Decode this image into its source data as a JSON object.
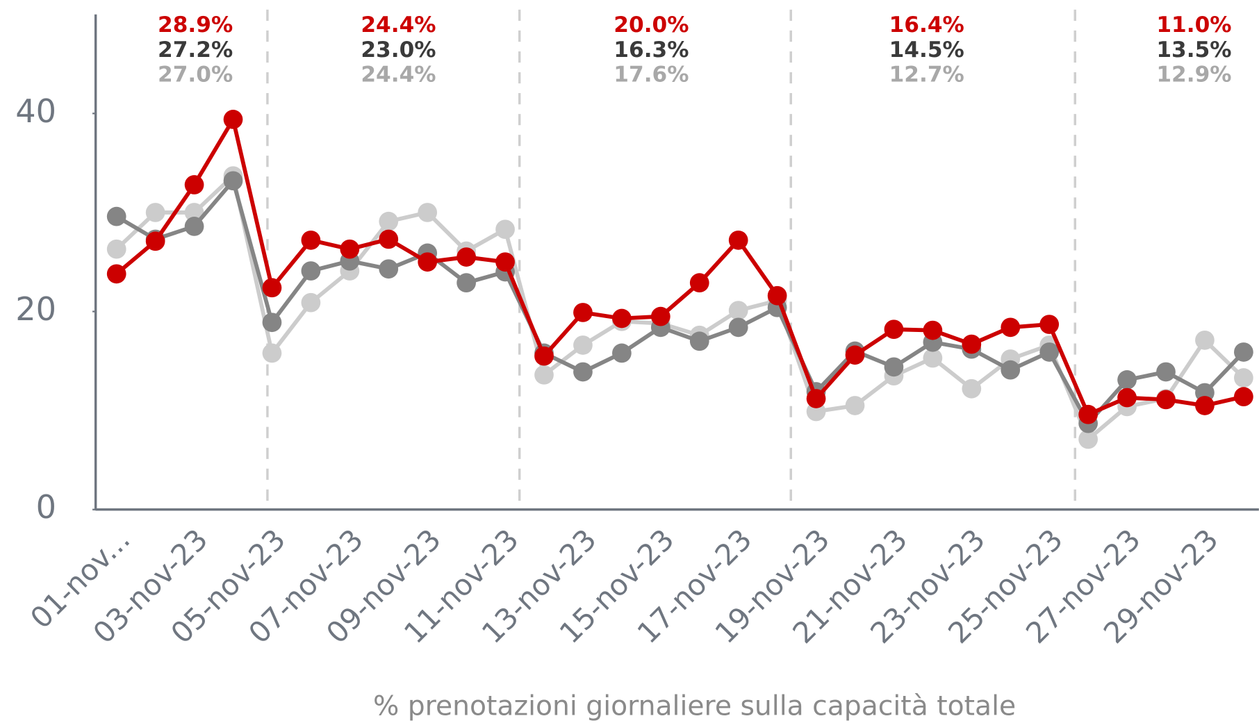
{
  "chart_data": {
    "type": "line",
    "x_label": "% prenotazioni giornaliere sulla capacità totale",
    "categories": [
      "01-nov...",
      null,
      "03-nov-23",
      null,
      "05-nov-23",
      null,
      "07-nov-23",
      null,
      "09-nov-23",
      null,
      "11-nov-23",
      null,
      "13-nov-23",
      null,
      "15-nov-23",
      null,
      "17-nov-23",
      null,
      "19-nov-23",
      null,
      "21-nov-23",
      null,
      "23-nov-23",
      null,
      "25-nov-23",
      null,
      "27-nov-23",
      null,
      "29-nov-23",
      null
    ],
    "series": [
      {
        "color": "#cccccc",
        "values": [
          26.3,
          30.0,
          30.0,
          33.7,
          15.8,
          20.9,
          24.1,
          29.1,
          30.0,
          26.1,
          28.3,
          13.6,
          16.6,
          19.0,
          18.8,
          17.6,
          20.1,
          21.1,
          9.9,
          10.5,
          13.5,
          15.3,
          12.2,
          15.2,
          16.6,
          7.1,
          10.4,
          11.2,
          17.1,
          13.3
        ]
      },
      {
        "color": "#858585",
        "values": [
          29.6,
          27.3,
          28.6,
          33.2,
          18.9,
          24.1,
          25.1,
          24.3,
          25.9,
          22.9,
          24.0,
          15.8,
          13.9,
          15.8,
          18.4,
          17.0,
          18.4,
          20.4,
          11.9,
          16.0,
          14.4,
          16.9,
          16.2,
          14.1,
          15.9,
          8.7,
          13.1,
          13.9,
          11.8,
          15.9
        ]
      },
      {
        "color": "#cc0000",
        "values": [
          23.8,
          27.1,
          32.8,
          39.4,
          22.4,
          27.2,
          26.3,
          27.3,
          25.0,
          25.5,
          25.0,
          15.5,
          19.9,
          19.3,
          19.5,
          22.9,
          27.2,
          21.6,
          11.2,
          15.6,
          18.2,
          18.1,
          16.7,
          18.4,
          18.7,
          9.6,
          11.3,
          11.1,
          10.5,
          11.4
        ]
      }
    ],
    "annotations": [
      [
        "28.9%",
        "27.2%",
        "27.0%"
      ],
      [
        "24.4%",
        "23.0%",
        "24.4%"
      ],
      [
        "20.0%",
        "16.3%",
        "17.6%"
      ],
      [
        "16.4%",
        "14.5%",
        "12.7%"
      ],
      [
        "11.0%",
        "13.5%",
        "12.9%"
      ]
    ],
    "annotation_colors": [
      "#cc0000",
      "#3a3a3a",
      "#a8a8a8"
    ],
    "ylim": [
      0,
      50
    ],
    "yticks": [
      0,
      20,
      40
    ]
  }
}
